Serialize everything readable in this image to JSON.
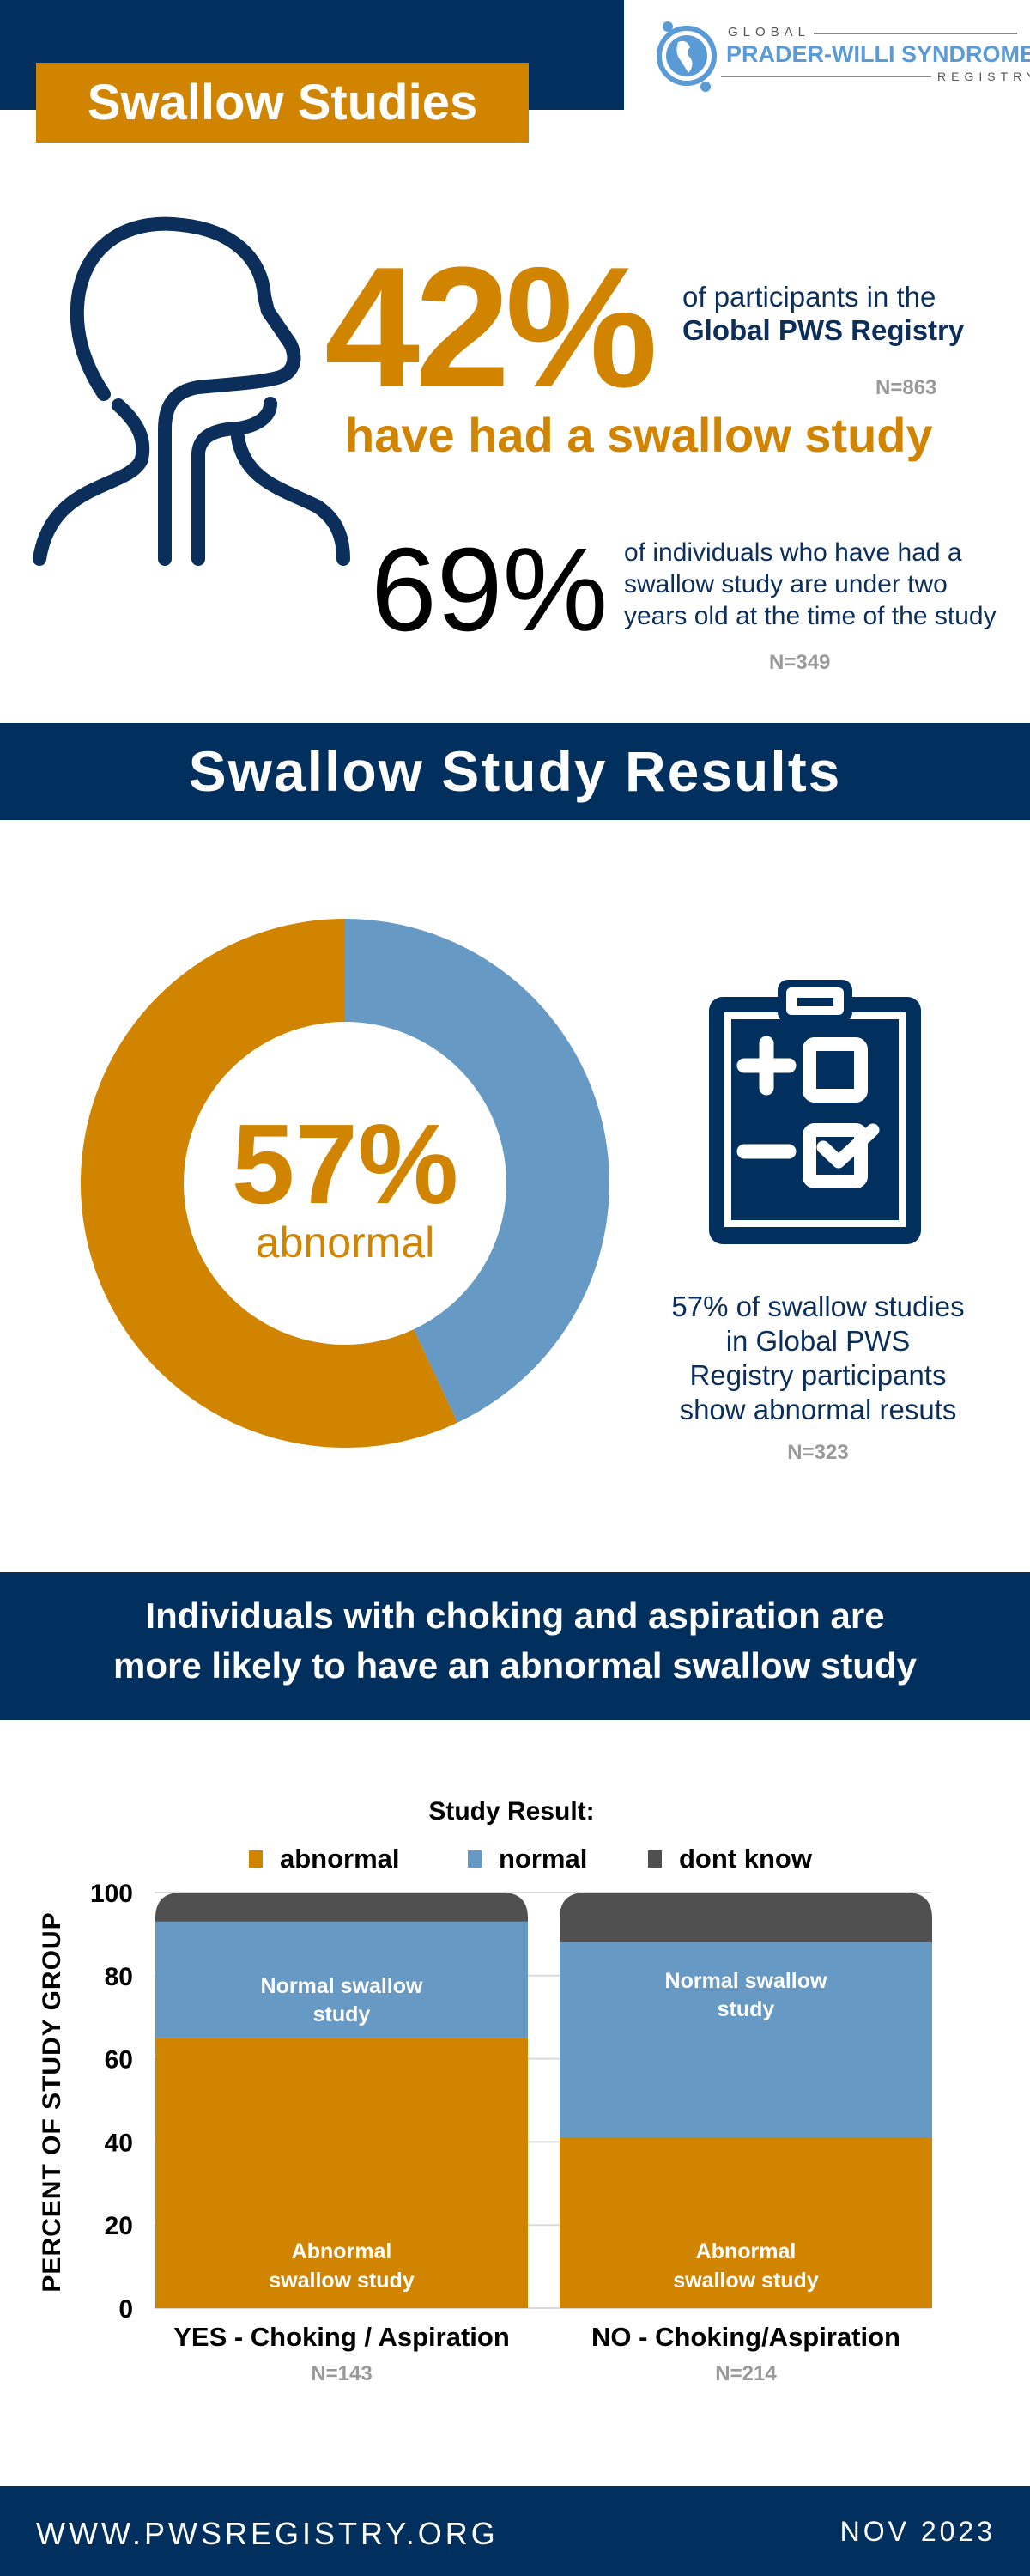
{
  "header": {
    "title": "Swallow Studies",
    "logo": {
      "line1": "GLOBAL",
      "line2": "PRADER-WILLI SYNDROME",
      "line3": "REGISTRY"
    }
  },
  "stat1": {
    "value": "42%",
    "text_line1": "of participants in the",
    "text_line2": "Global PWS Registry",
    "n": "N=863",
    "caption": "have had a swallow study"
  },
  "stat2": {
    "value": "69%",
    "lines": [
      "of individuals who have had a",
      "swallow study are under two",
      "years old at the time of the study"
    ],
    "n": "N=349"
  },
  "results": {
    "band_title": "Swallow Study Results",
    "donut_value": "57%",
    "donut_label": "abnormal",
    "description": [
      "57% of swallow studies",
      "in Global PWS",
      "Registry participants",
      "show abnormal resuts"
    ],
    "n": "N=323"
  },
  "colors": {
    "navy": "#02305e",
    "orange": "#d08400",
    "blue": "#6699c4",
    "dark": "#505050"
  },
  "chart_data": [
    {
      "type": "pie",
      "variant": "donut",
      "categories": [
        "abnormal",
        "normal"
      ],
      "values": [
        57,
        43
      ],
      "colors": [
        "#d08400",
        "#6699c4"
      ]
    },
    {
      "type": "bar",
      "stacked": true,
      "band_title": [
        "Individuals with choking and aspiration are",
        "more likely to have an abnormal swallow study"
      ],
      "legend_title": "Study Result:",
      "legend_position": "top",
      "categories": [
        "YES - Choking / Aspiration",
        "NO - Choking/Aspiration"
      ],
      "category_n": [
        "N=143",
        "N=214"
      ],
      "series": [
        {
          "name": "abnormal",
          "values": [
            65,
            41
          ],
          "color": "#d08400"
        },
        {
          "name": "normal",
          "values": [
            28,
            47
          ],
          "color": "#6699c4"
        },
        {
          "name": "dont know",
          "values": [
            7,
            12
          ],
          "color": "#505050"
        }
      ],
      "annotations": {
        "abnormal": [
          "Abnormal",
          "swallow study"
        ],
        "normal": [
          "Normal swallow",
          "study"
        ]
      },
      "ylabel": "PERCENT OF STUDY GROUP",
      "ylim": [
        0,
        100
      ],
      "yticks": [
        "0",
        "20",
        "40",
        "60",
        "80",
        "100"
      ],
      "grid": true
    }
  ],
  "footer": {
    "url": "WWW.PWSREGISTRY.ORG",
    "date": "NOV 2023"
  }
}
